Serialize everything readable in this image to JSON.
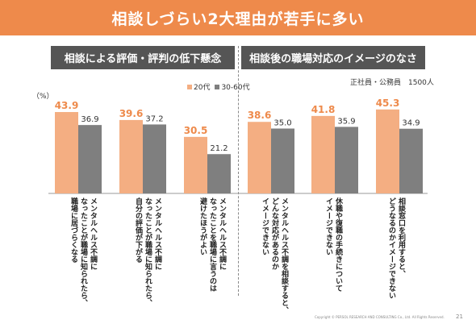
{
  "title": "相談しづらい2大理由が若手に多い",
  "groups": {
    "left": "相談による評価・評判の低下懸念",
    "right": "相談後の職場対応のイメージのなさ"
  },
  "note": "正社員・公務員　1500人",
  "unit": "（%）",
  "footer": "Copyright © PERSOL RESEARCH AND CONSULTING Co., Ltd. All Rights Reserved.",
  "page_number": "21",
  "colors": {
    "series1": "#f4ae82",
    "series2": "#7f7f7f",
    "title_bg": "#ee8a4b"
  },
  "chart_data": {
    "type": "bar",
    "categories": [
      "メンタルヘルス不調に\nなったことが職場に知られたら、\n職場に居づらくなる",
      "メンタルヘルス不調に\nなったことが職場に知られたら、\n自分の評価が下がる",
      "メンタルヘルス不調に\nなったことを職場に言うのは\n避けたほうがよい",
      "メンタルヘルス不調を相談すると、\nどんな対応があるのか\nイメージできない",
      "休職や復職の手続きについて\nイメージできない",
      "相談窓口を利用すると、\nどうなるのかイメージできない"
    ],
    "series": [
      {
        "name": "20代",
        "values": [
          43.9,
          39.6,
          30.5,
          38.6,
          41.8,
          45.3
        ]
      },
      {
        "name": "30-60代",
        "values": [
          36.9,
          37.2,
          21.2,
          35.0,
          35.9,
          34.9
        ]
      }
    ],
    "ylim": [
      0,
      50
    ],
    "legend": "top"
  }
}
